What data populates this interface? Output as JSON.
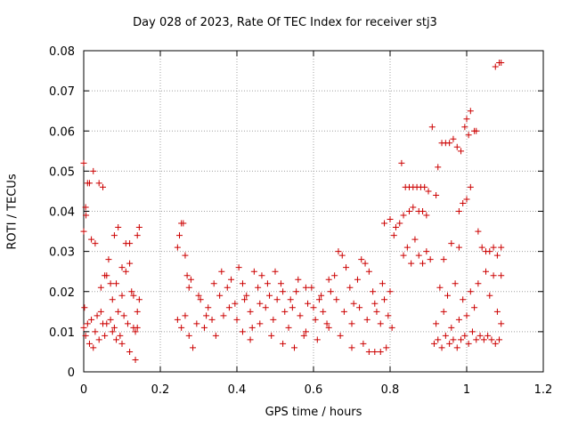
{
  "chart_data": {
    "type": "scatter",
    "title": "Day 028 of 2023, Rate Of TEC Index for receiver stj3",
    "xlabel": "GPS time / hours",
    "ylabel": "ROTI / TECUs",
    "xlim": [
      0,
      1.2
    ],
    "ylim": [
      0,
      0.08
    ],
    "x_ticks": [
      "0",
      "0.2",
      "0.4",
      "0.6",
      "0.8",
      "1",
      "1.2"
    ],
    "y_ticks": [
      "0",
      "0.01",
      "0.02",
      "0.03",
      "0.04",
      "0.05",
      "0.06",
      "0.07",
      "0.08"
    ],
    "grid": true,
    "marker": "+",
    "color": "#cc0000",
    "series": [
      {
        "points": [
          [
            0.0,
            0.052
          ],
          [
            0.0,
            0.035
          ],
          [
            0.002,
            0.016
          ],
          [
            0.005,
            0.041
          ],
          [
            0.006,
            0.039
          ],
          [
            0.01,
            0.047
          ],
          [
            0.015,
            0.047
          ],
          [
            0.025,
            0.05
          ],
          [
            0.04,
            0.047
          ],
          [
            0.05,
            0.046
          ],
          [
            0.0,
            0.011
          ],
          [
            0.005,
            0.009
          ],
          [
            0.01,
            0.012
          ],
          [
            0.015,
            0.007
          ],
          [
            0.02,
            0.013
          ],
          [
            0.025,
            0.006
          ],
          [
            0.03,
            0.01
          ],
          [
            0.035,
            0.014
          ],
          [
            0.04,
            0.008
          ],
          [
            0.045,
            0.015
          ],
          [
            0.05,
            0.012
          ],
          [
            0.055,
            0.009
          ],
          [
            0.06,
            0.024
          ],
          [
            0.065,
            0.028
          ],
          [
            0.07,
            0.013
          ],
          [
            0.075,
            0.018
          ],
          [
            0.08,
            0.011
          ],
          [
            0.085,
            0.022
          ],
          [
            0.09,
            0.015
          ],
          [
            0.095,
            0.009
          ],
          [
            0.1,
            0.019
          ],
          [
            0.105,
            0.014
          ],
          [
            0.11,
            0.025
          ],
          [
            0.115,
            0.012
          ],
          [
            0.12,
            0.027
          ],
          [
            0.125,
            0.02
          ],
          [
            0.13,
            0.011
          ],
          [
            0.135,
            0.01
          ],
          [
            0.14,
            0.015
          ],
          [
            0.145,
            0.018
          ],
          [
            0.02,
            0.033
          ],
          [
            0.03,
            0.032
          ],
          [
            0.045,
            0.021
          ],
          [
            0.055,
            0.024
          ],
          [
            0.07,
            0.022
          ],
          [
            0.08,
            0.034
          ],
          [
            0.09,
            0.036
          ],
          [
            0.1,
            0.026
          ],
          [
            0.11,
            0.032
          ],
          [
            0.12,
            0.032
          ],
          [
            0.13,
            0.019
          ],
          [
            0.14,
            0.034
          ],
          [
            0.145,
            0.036
          ],
          [
            0.06,
            0.012
          ],
          [
            0.075,
            0.01
          ],
          [
            0.085,
            0.008
          ],
          [
            0.1,
            0.007
          ],
          [
            0.12,
            0.005
          ],
          [
            0.135,
            0.003
          ],
          [
            0.14,
            0.011
          ],
          [
            0.245,
            0.031
          ],
          [
            0.25,
            0.034
          ],
          [
            0.255,
            0.037
          ],
          [
            0.26,
            0.037
          ],
          [
            0.265,
            0.029
          ],
          [
            0.27,
            0.024
          ],
          [
            0.28,
            0.023
          ],
          [
            0.245,
            0.013
          ],
          [
            0.255,
            0.011
          ],
          [
            0.265,
            0.014
          ],
          [
            0.275,
            0.009
          ],
          [
            0.285,
            0.006
          ],
          [
            0.295,
            0.012
          ],
          [
            0.305,
            0.018
          ],
          [
            0.315,
            0.011
          ],
          [
            0.325,
            0.016
          ],
          [
            0.335,
            0.013
          ],
          [
            0.345,
            0.009
          ],
          [
            0.355,
            0.019
          ],
          [
            0.365,
            0.014
          ],
          [
            0.375,
            0.021
          ],
          [
            0.385,
            0.023
          ],
          [
            0.395,
            0.017
          ],
          [
            0.405,
            0.026
          ],
          [
            0.415,
            0.022
          ],
          [
            0.425,
            0.019
          ],
          [
            0.435,
            0.015
          ],
          [
            0.445,
            0.025
          ],
          [
            0.455,
            0.021
          ],
          [
            0.465,
            0.024
          ],
          [
            0.475,
            0.016
          ],
          [
            0.485,
            0.019
          ],
          [
            0.495,
            0.013
          ],
          [
            0.505,
            0.018
          ],
          [
            0.515,
            0.022
          ],
          [
            0.525,
            0.015
          ],
          [
            0.535,
            0.011
          ],
          [
            0.545,
            0.016
          ],
          [
            0.555,
            0.02
          ],
          [
            0.565,
            0.014
          ],
          [
            0.575,
            0.009
          ],
          [
            0.585,
            0.017
          ],
          [
            0.595,
            0.021
          ],
          [
            0.605,
            0.013
          ],
          [
            0.615,
            0.018
          ],
          [
            0.625,
            0.015
          ],
          [
            0.635,
            0.012
          ],
          [
            0.645,
            0.02
          ],
          [
            0.655,
            0.024
          ],
          [
            0.665,
            0.03
          ],
          [
            0.675,
            0.029
          ],
          [
            0.685,
            0.026
          ],
          [
            0.695,
            0.021
          ],
          [
            0.705,
            0.017
          ],
          [
            0.715,
            0.023
          ],
          [
            0.725,
            0.028
          ],
          [
            0.735,
            0.027
          ],
          [
            0.745,
            0.025
          ],
          [
            0.755,
            0.02
          ],
          [
            0.765,
            0.015
          ],
          [
            0.775,
            0.012
          ],
          [
            0.785,
            0.018
          ],
          [
            0.795,
            0.014
          ],
          [
            0.805,
            0.011
          ],
          [
            0.415,
            0.01
          ],
          [
            0.435,
            0.008
          ],
          [
            0.46,
            0.012
          ],
          [
            0.49,
            0.009
          ],
          [
            0.52,
            0.007
          ],
          [
            0.55,
            0.006
          ],
          [
            0.58,
            0.01
          ],
          [
            0.61,
            0.008
          ],
          [
            0.64,
            0.011
          ],
          [
            0.67,
            0.009
          ],
          [
            0.7,
            0.006
          ],
          [
            0.73,
            0.007
          ],
          [
            0.745,
            0.005
          ],
          [
            0.76,
            0.005
          ],
          [
            0.775,
            0.005
          ],
          [
            0.79,
            0.006
          ],
          [
            0.275,
            0.021
          ],
          [
            0.3,
            0.019
          ],
          [
            0.32,
            0.014
          ],
          [
            0.34,
            0.022
          ],
          [
            0.36,
            0.025
          ],
          [
            0.38,
            0.016
          ],
          [
            0.4,
            0.013
          ],
          [
            0.42,
            0.018
          ],
          [
            0.44,
            0.011
          ],
          [
            0.46,
            0.017
          ],
          [
            0.48,
            0.022
          ],
          [
            0.5,
            0.025
          ],
          [
            0.52,
            0.02
          ],
          [
            0.54,
            0.018
          ],
          [
            0.56,
            0.023
          ],
          [
            0.58,
            0.021
          ],
          [
            0.6,
            0.016
          ],
          [
            0.62,
            0.019
          ],
          [
            0.64,
            0.023
          ],
          [
            0.66,
            0.018
          ],
          [
            0.68,
            0.015
          ],
          [
            0.7,
            0.012
          ],
          [
            0.72,
            0.016
          ],
          [
            0.74,
            0.013
          ],
          [
            0.76,
            0.017
          ],
          [
            0.78,
            0.022
          ],
          [
            0.8,
            0.02
          ],
          [
            0.785,
            0.037
          ],
          [
            0.8,
            0.038
          ],
          [
            0.81,
            0.034
          ],
          [
            0.815,
            0.036
          ],
          [
            0.825,
            0.037
          ],
          [
            0.83,
            0.052
          ],
          [
            0.835,
            0.039
          ],
          [
            0.84,
            0.046
          ],
          [
            0.85,
            0.046
          ],
          [
            0.86,
            0.046
          ],
          [
            0.87,
            0.046
          ],
          [
            0.88,
            0.046
          ],
          [
            0.89,
            0.046
          ],
          [
            0.9,
            0.045
          ],
          [
            0.85,
            0.04
          ],
          [
            0.86,
            0.041
          ],
          [
            0.875,
            0.04
          ],
          [
            0.885,
            0.04
          ],
          [
            0.895,
            0.039
          ],
          [
            0.835,
            0.029
          ],
          [
            0.845,
            0.031
          ],
          [
            0.855,
            0.027
          ],
          [
            0.865,
            0.033
          ],
          [
            0.875,
            0.029
          ],
          [
            0.885,
            0.027
          ],
          [
            0.895,
            0.03
          ],
          [
            0.905,
            0.028
          ],
          [
            0.91,
            0.061
          ],
          [
            0.92,
            0.044
          ],
          [
            0.925,
            0.051
          ],
          [
            0.935,
            0.057
          ],
          [
            0.945,
            0.057
          ],
          [
            0.955,
            0.057
          ],
          [
            0.965,
            0.058
          ],
          [
            0.975,
            0.056
          ],
          [
            0.985,
            0.055
          ],
          [
            0.995,
            0.061
          ],
          [
            1.0,
            0.063
          ],
          [
            1.005,
            0.059
          ],
          [
            1.01,
            0.065
          ],
          [
            1.02,
            0.06
          ],
          [
            1.025,
            0.06
          ],
          [
            0.99,
            0.042
          ],
          [
            1.0,
            0.043
          ],
          [
            0.98,
            0.04
          ],
          [
            1.01,
            0.046
          ],
          [
            0.915,
            0.007
          ],
          [
            0.925,
            0.008
          ],
          [
            0.935,
            0.006
          ],
          [
            0.945,
            0.009
          ],
          [
            0.955,
            0.007
          ],
          [
            0.965,
            0.008
          ],
          [
            0.975,
            0.006
          ],
          [
            0.985,
            0.008
          ],
          [
            0.995,
            0.009
          ],
          [
            1.005,
            0.007
          ],
          [
            1.015,
            0.01
          ],
          [
            1.025,
            0.008
          ],
          [
            1.035,
            0.009
          ],
          [
            1.045,
            0.008
          ],
          [
            1.055,
            0.009
          ],
          [
            1.065,
            0.008
          ],
          [
            1.075,
            0.007
          ],
          [
            1.085,
            0.008
          ],
          [
            0.92,
            0.012
          ],
          [
            0.94,
            0.015
          ],
          [
            0.96,
            0.011
          ],
          [
            0.98,
            0.013
          ],
          [
            1.0,
            0.014
          ],
          [
            1.02,
            0.016
          ],
          [
            0.93,
            0.021
          ],
          [
            0.95,
            0.019
          ],
          [
            0.97,
            0.022
          ],
          [
            0.99,
            0.018
          ],
          [
            1.01,
            0.02
          ],
          [
            1.03,
            0.022
          ],
          [
            1.05,
            0.025
          ],
          [
            1.07,
            0.024
          ],
          [
            1.09,
            0.024
          ],
          [
            0.94,
            0.028
          ],
          [
            0.96,
            0.032
          ],
          [
            0.98,
            0.031
          ],
          [
            1.03,
            0.035
          ],
          [
            1.04,
            0.031
          ],
          [
            1.05,
            0.03
          ],
          [
            1.06,
            0.03
          ],
          [
            1.07,
            0.031
          ],
          [
            1.08,
            0.029
          ],
          [
            1.09,
            0.031
          ],
          [
            1.06,
            0.019
          ],
          [
            1.08,
            0.015
          ],
          [
            1.09,
            0.012
          ],
          [
            1.075,
            0.076
          ],
          [
            1.085,
            0.077
          ],
          [
            1.09,
            0.077
          ]
        ]
      }
    ]
  }
}
